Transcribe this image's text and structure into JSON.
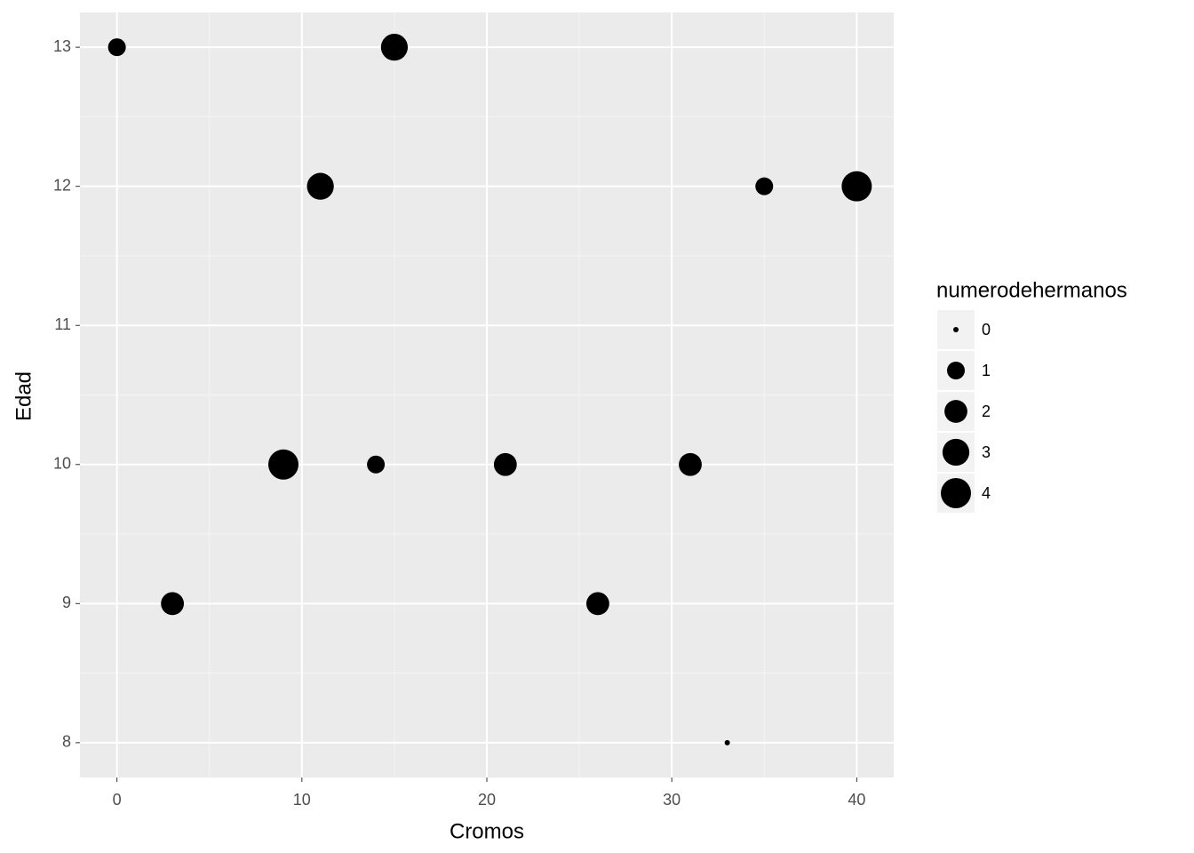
{
  "chart_data": {
    "type": "scatter",
    "x_label": "Cromos",
    "y_label": "Edad",
    "x": [
      0,
      15,
      11,
      35,
      40,
      9,
      14,
      21,
      31,
      3,
      26,
      33
    ],
    "y": [
      13,
      13,
      12,
      12,
      12,
      10,
      10,
      10,
      10,
      9,
      9,
      8
    ],
    "sizes": [
      1,
      3,
      3,
      1,
      4,
      4,
      1,
      2,
      2,
      2,
      2,
      0
    ],
    "color": "#000000",
    "xlim": [
      -2,
      42
    ],
    "ylim": [
      7.75,
      13.25
    ],
    "xticks": [
      0,
      10,
      20,
      30,
      40
    ],
    "yticks": [
      8,
      9,
      10,
      11,
      12,
      13
    ],
    "grid": true,
    "legend": {
      "title": "numerodehermanos",
      "position": "right",
      "breaks": [
        0,
        1,
        2,
        3,
        4
      ]
    }
  }
}
